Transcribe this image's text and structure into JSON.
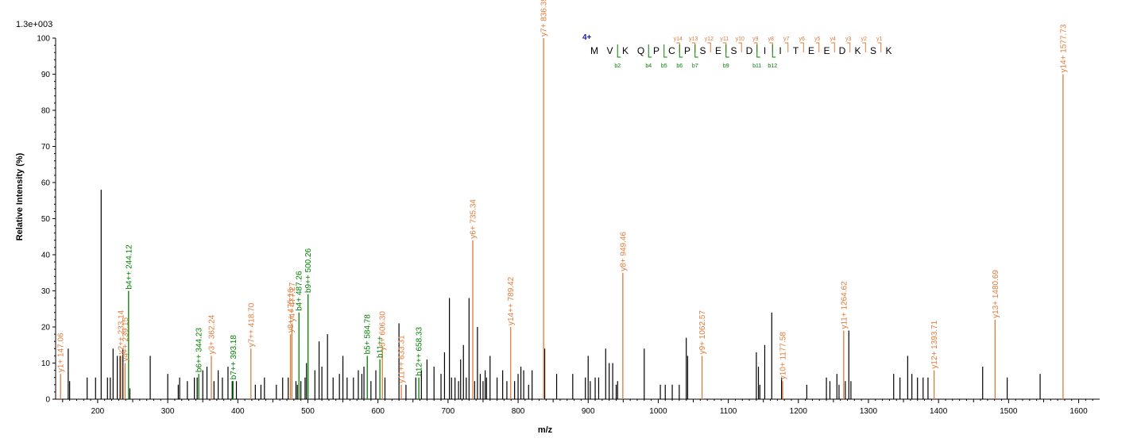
{
  "chart_data": {
    "type": "bar",
    "scale_label": "1.3e+003",
    "xlabel": "m/z",
    "ylabel": "Relative   Intensity (%)",
    "xlim": [
      140,
      1630
    ],
    "ylim": [
      0,
      100
    ],
    "x_ticks": [
      200,
      300,
      400,
      500,
      600,
      700,
      800,
      900,
      1000,
      1100,
      1200,
      1300,
      1400,
      1500,
      1600
    ],
    "y_ticks": [
      0,
      10,
      20,
      30,
      40,
      50,
      60,
      70,
      80,
      90,
      100
    ],
    "colors": {
      "y_ion": "#e07b39",
      "b_ion": "#008000",
      "unassigned": "#000000",
      "charge": "#1a1aa8"
    },
    "labeled_peaks": [
      {
        "x": 147.06,
        "y": 7,
        "label": "y1+ 147.06",
        "ion": "y"
      },
      {
        "x": 233.14,
        "y": 12,
        "label": "y2++ 233.14",
        "ion": "y"
      },
      {
        "x": 239.15,
        "y": 10,
        "label": "y4++ 239.15",
        "ion": "y"
      },
      {
        "x": 244.12,
        "y": 30,
        "label": "b4++ 244.12",
        "ion": "b"
      },
      {
        "x": 344.23,
        "y": 7,
        "label": "b6++ 344.23",
        "ion": "b"
      },
      {
        "x": 362.24,
        "y": 12,
        "label": "y3+ 362.24",
        "ion": "y"
      },
      {
        "x": 393.18,
        "y": 5,
        "label": "b7++ 393.18",
        "ion": "b"
      },
      {
        "x": 418.7,
        "y": 14,
        "label": "y7++ 418.70",
        "ion": "y"
      },
      {
        "x": 475.16,
        "y": 18,
        "label": "y8++ 475.16",
        "ion": "y"
      },
      {
        "x": 477.27,
        "y": 21,
        "label": "y4+ 477.27",
        "ion": "y"
      },
      {
        "x": 487.26,
        "y": 24,
        "label": "b4+ 487.26",
        "ion": "b"
      },
      {
        "x": 500.26,
        "y": 29,
        "label": "b9++ 500.26",
        "ion": "b"
      },
      {
        "x": 584.78,
        "y": 12,
        "label": "b5+ 584.78",
        "ion": "b"
      },
      {
        "x": 602.8,
        "y": 11,
        "label": "b11++",
        "ion": "b"
      },
      {
        "x": 606.3,
        "y": 13,
        "label": "y5+ 606.30",
        "ion": "y"
      },
      {
        "x": 633.31,
        "y": 4,
        "label": "y11++ 633.31",
        "ion": "y"
      },
      {
        "x": 658.33,
        "y": 6,
        "label": "b12++ 658.33",
        "ion": "b"
      },
      {
        "x": 735.34,
        "y": 44,
        "label": "y6+ 735.34",
        "ion": "y"
      },
      {
        "x": 789.42,
        "y": 20,
        "label": "y14++ 789.42",
        "ion": "y"
      },
      {
        "x": 836.39,
        "y": 100,
        "label": "y7+ 836.39",
        "ion": "y"
      },
      {
        "x": 949.46,
        "y": 35,
        "label": "y8+ 949.46",
        "ion": "y"
      },
      {
        "x": 1062.57,
        "y": 12,
        "label": "y9+ 1062.57",
        "ion": "y"
      },
      {
        "x": 1177.58,
        "y": 5,
        "label": "y10+ 1177.58",
        "ion": "y"
      },
      {
        "x": 1264.62,
        "y": 19,
        "label": "y11+ 1264.62",
        "ion": "y"
      },
      {
        "x": 1393.71,
        "y": 8,
        "label": "y12+ 1393.71",
        "ion": "y"
      },
      {
        "x": 1480.69,
        "y": 22,
        "label": "y13+ 1480.69",
        "ion": "y"
      },
      {
        "x": 1577.73,
        "y": 90,
        "label": "y14+ 1577.73",
        "ion": "y"
      }
    ],
    "unlabeled_peaks": [
      [
        158,
        14
      ],
      [
        160,
        5
      ],
      [
        185,
        6
      ],
      [
        197,
        6
      ],
      [
        205,
        58
      ],
      [
        214,
        6
      ],
      [
        218,
        6
      ],
      [
        222,
        14
      ],
      [
        228,
        12
      ],
      [
        232,
        12
      ],
      [
        236,
        14
      ],
      [
        246,
        3
      ],
      [
        275,
        12
      ],
      [
        300,
        7
      ],
      [
        315,
        4
      ],
      [
        317,
        6
      ],
      [
        328,
        5
      ],
      [
        338,
        6
      ],
      [
        342,
        6
      ],
      [
        350,
        8
      ],
      [
        356,
        9
      ],
      [
        366,
        5
      ],
      [
        372,
        8
      ],
      [
        378,
        6
      ],
      [
        386,
        9
      ],
      [
        392,
        5
      ],
      [
        398,
        5
      ],
      [
        425,
        4
      ],
      [
        433,
        4
      ],
      [
        438,
        6
      ],
      [
        455,
        4
      ],
      [
        464,
        6
      ],
      [
        472,
        6
      ],
      [
        483,
        5
      ],
      [
        485,
        4
      ],
      [
        490,
        5
      ],
      [
        496,
        6
      ],
      [
        498,
        10
      ],
      [
        510,
        8
      ],
      [
        516,
        16
      ],
      [
        520,
        9
      ],
      [
        528,
        18
      ],
      [
        536,
        6
      ],
      [
        545,
        7
      ],
      [
        550,
        12
      ],
      [
        556,
        6
      ],
      [
        565,
        6
      ],
      [
        572,
        8
      ],
      [
        577,
        7
      ],
      [
        580,
        9
      ],
      [
        590,
        5
      ],
      [
        597,
        8
      ],
      [
        610,
        6
      ],
      [
        630,
        21
      ],
      [
        640,
        4
      ],
      [
        654,
        6
      ],
      [
        662,
        8
      ],
      [
        670,
        11
      ],
      [
        680,
        9
      ],
      [
        690,
        7
      ],
      [
        695,
        13
      ],
      [
        702,
        28
      ],
      [
        705,
        6
      ],
      [
        710,
        6
      ],
      [
        715,
        5
      ],
      [
        718,
        11
      ],
      [
        722,
        15
      ],
      [
        726,
        6
      ],
      [
        730,
        28
      ],
      [
        738,
        5
      ],
      [
        742,
        20
      ],
      [
        746,
        7
      ],
      [
        750,
        5
      ],
      [
        753,
        8
      ],
      [
        755,
        6
      ],
      [
        760,
        12
      ],
      [
        770,
        6
      ],
      [
        778,
        8
      ],
      [
        784,
        5
      ],
      [
        795,
        5
      ],
      [
        800,
        7
      ],
      [
        804,
        9
      ],
      [
        808,
        8
      ],
      [
        815,
        4
      ],
      [
        820,
        8
      ],
      [
        838,
        14
      ],
      [
        855,
        7
      ],
      [
        878,
        7
      ],
      [
        896,
        6
      ],
      [
        900,
        12
      ],
      [
        903,
        5
      ],
      [
        910,
        6
      ],
      [
        915,
        6
      ],
      [
        925,
        14
      ],
      [
        930,
        10
      ],
      [
        935,
        10
      ],
      [
        940,
        4
      ],
      [
        942,
        5
      ],
      [
        980,
        14
      ],
      [
        1003,
        4
      ],
      [
        1010,
        4
      ],
      [
        1020,
        4
      ],
      [
        1030,
        4
      ],
      [
        1040,
        17
      ],
      [
        1042,
        12
      ],
      [
        1140,
        13
      ],
      [
        1143,
        9
      ],
      [
        1145,
        4
      ],
      [
        1152,
        15
      ],
      [
        1162,
        24
      ],
      [
        1176,
        6
      ],
      [
        1212,
        4
      ],
      [
        1240,
        6
      ],
      [
        1245,
        5
      ],
      [
        1255,
        7
      ],
      [
        1258,
        4
      ],
      [
        1267,
        5
      ],
      [
        1272,
        19
      ],
      [
        1275,
        5
      ],
      [
        1336,
        7
      ],
      [
        1345,
        6
      ],
      [
        1356,
        12
      ],
      [
        1362,
        7
      ],
      [
        1370,
        6
      ],
      [
        1378,
        6
      ],
      [
        1385,
        6
      ],
      [
        1463,
        9
      ],
      [
        1498,
        6
      ],
      [
        1545,
        7
      ]
    ]
  },
  "sequence": {
    "charge": "4+",
    "residues": [
      "M",
      "V",
      "K",
      "Q",
      "P",
      "C",
      "P",
      "S",
      "E",
      "S",
      "D",
      "I",
      "I",
      "T",
      "E",
      "E",
      "D",
      "K",
      "S",
      "K"
    ],
    "y_marks": [
      {
        "after": 5,
        "label": "y14"
      },
      {
        "after": 6,
        "label": "y13"
      },
      {
        "after": 7,
        "label": "y12"
      },
      {
        "after": 8,
        "label": "y11"
      },
      {
        "after": 9,
        "label": "y10"
      },
      {
        "after": 10,
        "label": "y9"
      },
      {
        "after": 11,
        "label": "y8"
      },
      {
        "after": 12,
        "label": "y7"
      },
      {
        "after": 13,
        "label": "y6"
      },
      {
        "after": 14,
        "label": "y5"
      },
      {
        "after": 15,
        "label": "y4"
      },
      {
        "after": 16,
        "label": "y3"
      },
      {
        "after": 17,
        "label": "y2"
      },
      {
        "after": 18,
        "label": "y1"
      }
    ],
    "b_marks": [
      {
        "after": 1,
        "label": "b2"
      },
      {
        "after": 3,
        "label": "b4"
      },
      {
        "after": 4,
        "label": "b5"
      },
      {
        "after": 5,
        "label": "b6"
      },
      {
        "after": 6,
        "label": "b7"
      },
      {
        "after": 8,
        "label": "b9"
      },
      {
        "after": 10,
        "label": "b11"
      },
      {
        "after": 11,
        "label": "b12"
      }
    ]
  }
}
